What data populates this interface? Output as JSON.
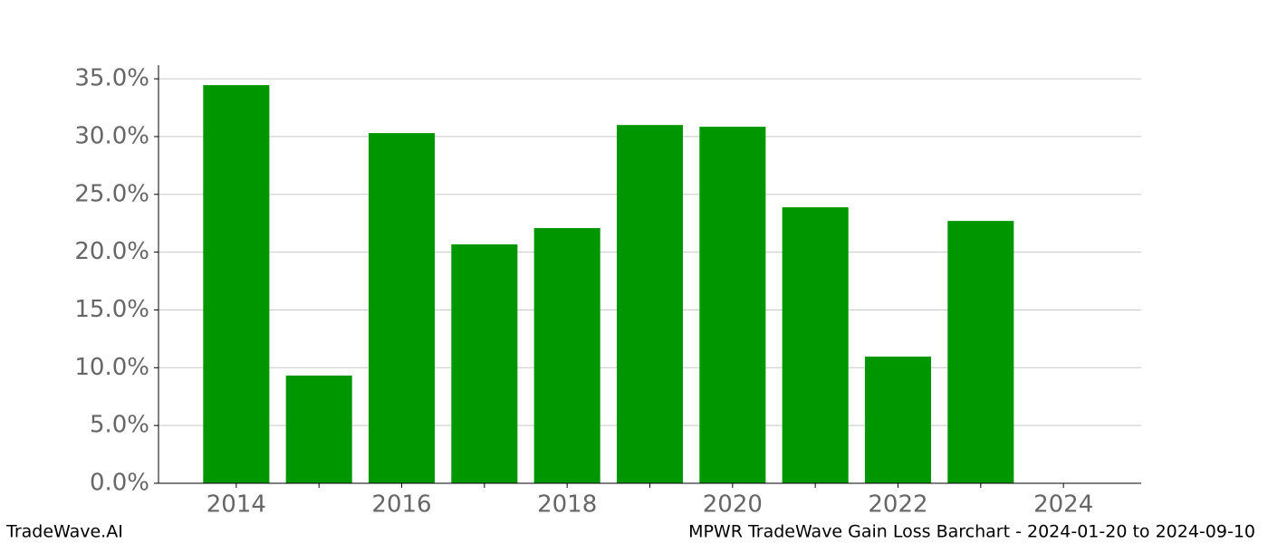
{
  "chart_data": {
    "type": "bar",
    "title": "MPWR TradeWave Gain Loss Barchart - 2024-01-20 to 2024-09-10",
    "source": "TradeWave.AI",
    "x": [
      2014,
      2015,
      2016,
      2017,
      2018,
      2019,
      2020,
      2021,
      2022,
      2023,
      2024
    ],
    "values": [
      34.45,
      9.32,
      30.3,
      20.67,
      22.08,
      31.0,
      30.85,
      23.88,
      10.96,
      22.7,
      0
    ],
    "bar_width": 0.8,
    "color": "#009600",
    "xlim": [
      2013.06,
      2024.94
    ],
    "xticks": [
      2014,
      2016,
      2018,
      2020,
      2022,
      2024
    ],
    "xminorticks": [
      2015,
      2017,
      2019,
      2021,
      2023
    ],
    "ylim": [
      0,
      36.18
    ],
    "yticks": [
      {
        "value": 0,
        "label": "0.0%"
      },
      {
        "value": 5,
        "label": "5.0%"
      },
      {
        "value": 10,
        "label": "10.0%"
      },
      {
        "value": 15,
        "label": "15.0%"
      },
      {
        "value": 20,
        "label": "20.0%"
      },
      {
        "value": 25,
        "label": "25.0%"
      },
      {
        "value": 30,
        "label": "30.0%"
      },
      {
        "value": 35,
        "label": "35.0%"
      }
    ],
    "grid": true
  }
}
